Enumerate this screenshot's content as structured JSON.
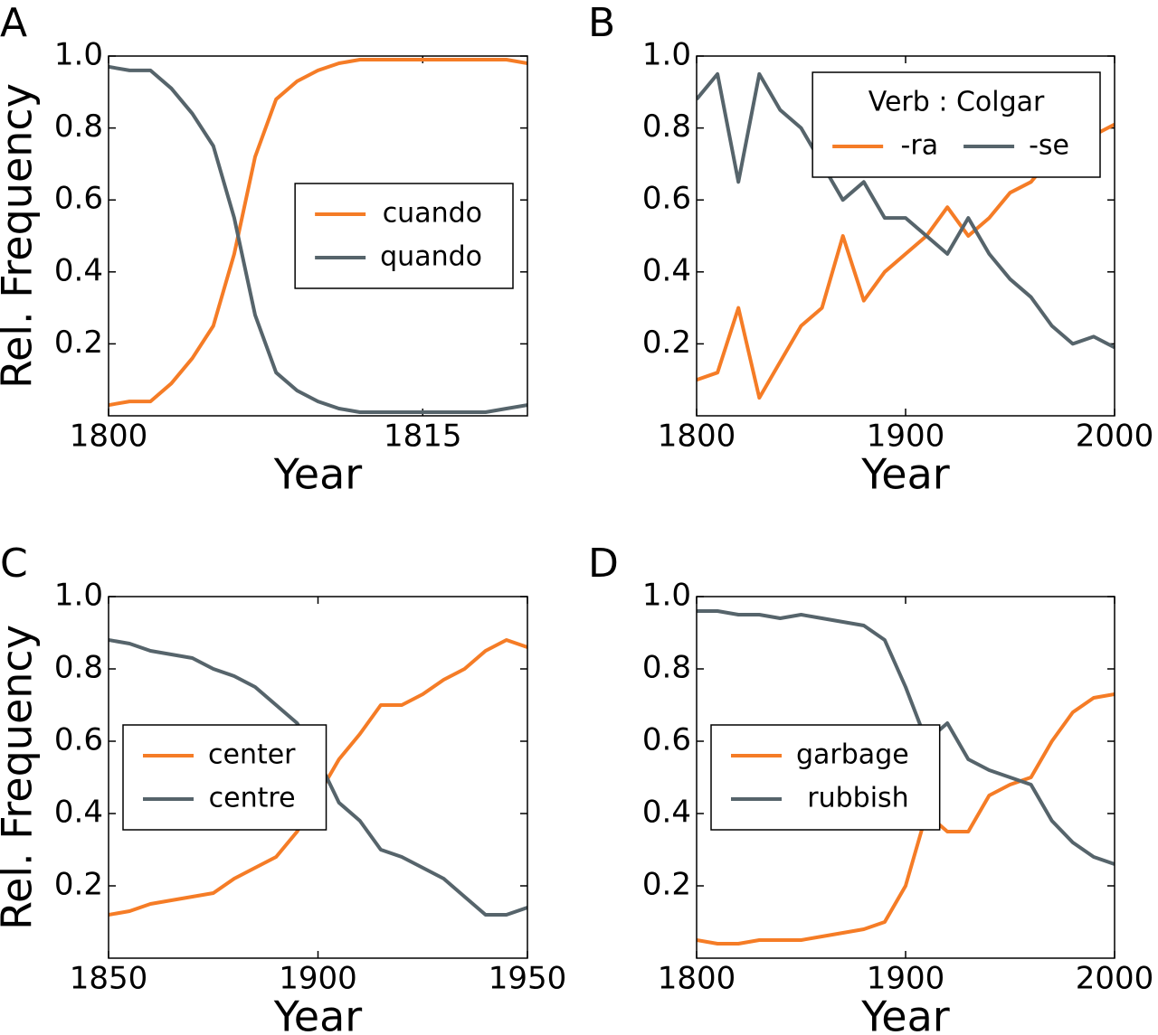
{
  "chart_data": [
    {
      "type": "line",
      "label": "A",
      "xlabel": "Year",
      "ylabel": "Rel. Frequency",
      "x": [
        1800,
        1801,
        1802,
        1803,
        1804,
        1805,
        1806,
        1807,
        1808,
        1809,
        1810,
        1811,
        1812,
        1813,
        1814,
        1815,
        1816,
        1817,
        1818,
        1819,
        1820
      ],
      "series": [
        {
          "name": "cuando",
          "color": "#f57c26",
          "values": [
            0.03,
            0.04,
            0.04,
            0.09,
            0.16,
            0.25,
            0.45,
            0.72,
            0.88,
            0.93,
            0.96,
            0.98,
            0.99,
            0.99,
            0.99,
            0.99,
            0.99,
            0.99,
            0.99,
            0.99,
            0.98
          ]
        },
        {
          "name": "quando",
          "color": "#56646b",
          "values": [
            0.97,
            0.96,
            0.96,
            0.91,
            0.84,
            0.75,
            0.55,
            0.28,
            0.12,
            0.07,
            0.04,
            0.02,
            0.01,
            0.01,
            0.01,
            0.01,
            0.01,
            0.01,
            0.01,
            0.02,
            0.03
          ]
        }
      ],
      "xlim": [
        1800,
        1820
      ],
      "xticks": [
        1800,
        1815
      ],
      "ylim": [
        0,
        1
      ],
      "yticks": [
        0.2,
        0.4,
        0.6,
        0.8,
        {
          "value": 1,
          "label": "1.0"
        }
      ],
      "legend": "center right"
    },
    {
      "type": "line",
      "label": "B",
      "xlabel": "Year",
      "legend_title": "Verb : Colgar",
      "x": [
        1800,
        1810,
        1820,
        1830,
        1840,
        1850,
        1860,
        1870,
        1880,
        1890,
        1900,
        1910,
        1920,
        1930,
        1940,
        1950,
        1960,
        1970,
        1980,
        1990,
        2000
      ],
      "series": [
        {
          "name": "-ra",
          "color": "#f57c26",
          "values": [
            0.1,
            0.12,
            0.3,
            0.05,
            0.15,
            0.25,
            0.3,
            0.5,
            0.32,
            0.4,
            0.45,
            0.5,
            0.58,
            0.5,
            0.55,
            0.62,
            0.65,
            0.72,
            0.76,
            0.78,
            0.81
          ]
        },
        {
          "name": "-se",
          "color": "#56646b",
          "values": [
            0.88,
            0.95,
            0.65,
            0.95,
            0.85,
            0.8,
            0.7,
            0.6,
            0.65,
            0.55,
            0.55,
            0.5,
            0.45,
            0.55,
            0.45,
            0.38,
            0.33,
            0.25,
            0.2,
            0.22,
            0.19
          ]
        }
      ],
      "xlim": [
        1800,
        2000
      ],
      "xticks": [
        1800,
        1900,
        2000
      ],
      "ylim": [
        0,
        1
      ],
      "yticks": [
        0.2,
        0.4,
        0.6,
        0.8,
        {
          "value": 1,
          "label": "1.0"
        }
      ],
      "legend": "upper right",
      "legend_columns": 2
    },
    {
      "type": "line",
      "label": "C",
      "xlabel": "Year",
      "ylabel": "Rel. Frequency",
      "x": [
        1850,
        1855,
        1860,
        1865,
        1870,
        1875,
        1880,
        1885,
        1890,
        1895,
        1900,
        1905,
        1910,
        1915,
        1920,
        1925,
        1930,
        1935,
        1940,
        1945,
        1950
      ],
      "series": [
        {
          "name": "center",
          "color": "#f57c26",
          "values": [
            0.12,
            0.13,
            0.15,
            0.16,
            0.17,
            0.18,
            0.22,
            0.25,
            0.28,
            0.35,
            0.45,
            0.55,
            0.62,
            0.7,
            0.7,
            0.73,
            0.77,
            0.8,
            0.85,
            0.88,
            0.86
          ]
        },
        {
          "name": "centre",
          "color": "#56646b",
          "values": [
            0.88,
            0.87,
            0.85,
            0.84,
            0.83,
            0.8,
            0.78,
            0.75,
            0.7,
            0.65,
            0.55,
            0.43,
            0.38,
            0.3,
            0.28,
            0.25,
            0.22,
            0.17,
            0.12,
            0.12,
            0.14
          ]
        }
      ],
      "xlim": [
        1850,
        1950
      ],
      "xticks": [
        1850,
        1900,
        1950
      ],
      "ylim": [
        0,
        1
      ],
      "yticks": [
        0.2,
        0.4,
        0.6,
        0.8,
        {
          "value": 1,
          "label": "1.0"
        }
      ],
      "legend": "center left"
    },
    {
      "type": "line",
      "label": "D",
      "xlabel": "Year",
      "x": [
        1800,
        1810,
        1820,
        1830,
        1840,
        1850,
        1860,
        1870,
        1880,
        1890,
        1900,
        1910,
        1920,
        1930,
        1940,
        1950,
        1960,
        1970,
        1980,
        1990,
        2000
      ],
      "series": [
        {
          "name": "garbage",
          "color": "#f57c26",
          "values": [
            0.05,
            0.04,
            0.04,
            0.05,
            0.05,
            0.05,
            0.06,
            0.07,
            0.08,
            0.1,
            0.2,
            0.4,
            0.35,
            0.35,
            0.45,
            0.48,
            0.5,
            0.6,
            0.68,
            0.72,
            0.73
          ]
        },
        {
          "name": "rubbish",
          "color": "#56646b",
          "values": [
            0.96,
            0.96,
            0.95,
            0.95,
            0.94,
            0.95,
            0.94,
            0.93,
            0.92,
            0.88,
            0.75,
            0.6,
            0.65,
            0.55,
            0.52,
            0.5,
            0.48,
            0.38,
            0.32,
            0.28,
            0.26
          ]
        }
      ],
      "xlim": [
        1800,
        2000
      ],
      "xticks": [
        1800,
        1900,
        2000
      ],
      "ylim": [
        0,
        1
      ],
      "yticks": [
        0.2,
        0.4,
        0.6,
        0.8,
        {
          "value": 1,
          "label": "1.0"
        }
      ],
      "legend": "center left"
    }
  ]
}
